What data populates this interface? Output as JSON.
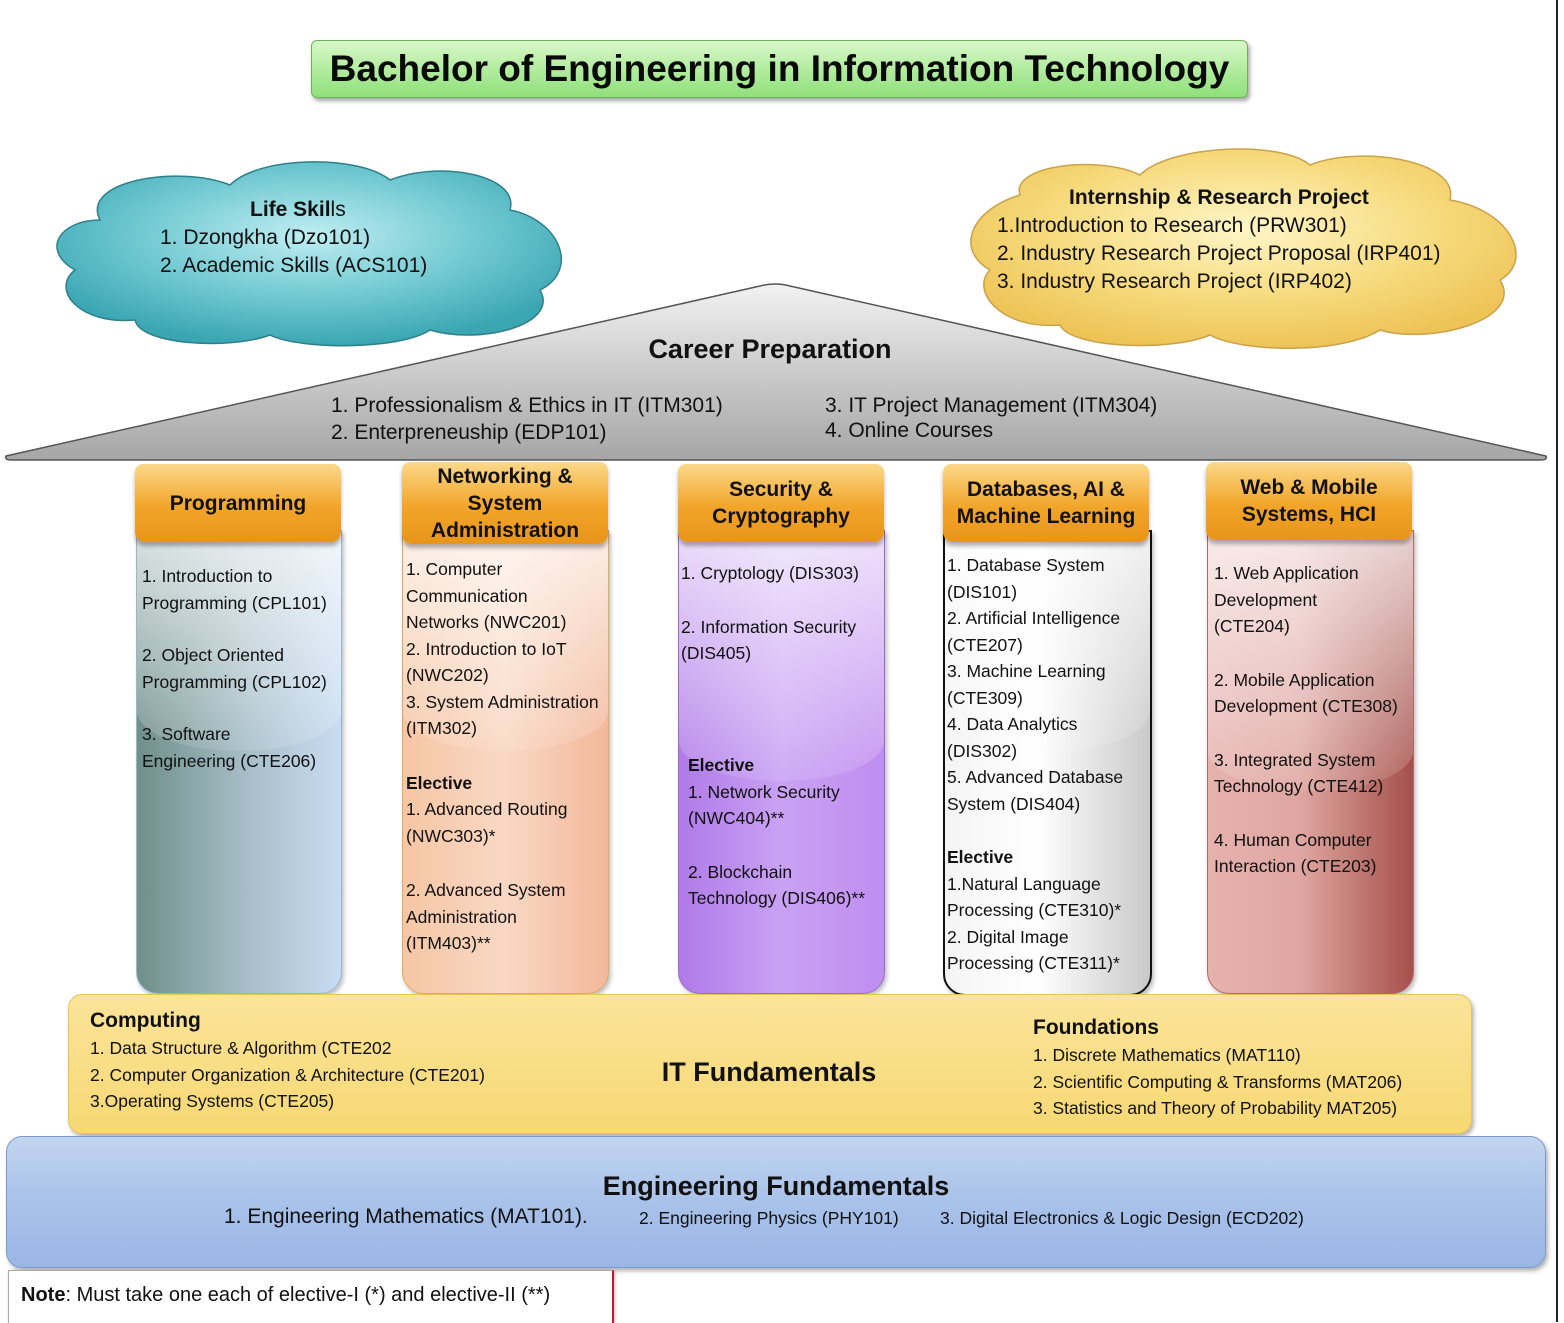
{
  "title": "Bachelor of Engineering in Information Technology",
  "life_skills": {
    "heading_bold": "Life Skil",
    "heading_rest": "ls",
    "items": [
      "1. Dzongkha (Dzo101)",
      "2. Academic Skills (ACS101)"
    ]
  },
  "internship": {
    "heading": "Internship & Research Project",
    "items": [
      "1.Introduction to Research (PRW301)",
      "2. Industry Research Project Proposal (IRP401)",
      "3. Industry Research Project (IRP402)"
    ]
  },
  "career": {
    "title": "Career Preparation",
    "items": [
      "1. Professionalism & Ethics in IT (ITM301)",
      "2. Enterpreneuship (EDP101)",
      "3. IT Project Management (ITM304)",
      "4. Online Courses"
    ]
  },
  "pillars": [
    {
      "title": "Programming",
      "items": [
        "1. Introduction to",
        "Programming (CPL101)",
        "2. Object Oriented",
        "Programming (CPL102)",
        "3. Software",
        "Engineering (CTE206)"
      ],
      "colors": {
        "top": "#eef3fa",
        "bottom_left": "#6f8f8a",
        "bottom_right": "#c9dcf2",
        "border": "#9ab4d4"
      }
    },
    {
      "title": "Networking & System Administration",
      "items": [
        "1. Computer",
        "Communication",
        "Networks (NWC201)",
        "2. Introduction to IoT",
        "(NWC202)",
        "3. System Administration",
        "(ITM302)"
      ],
      "elective_label": "Elective",
      "electives": [
        "1. Advanced Routing",
        "(NWC303)*",
        "2. Advanced System",
        "Administration",
        "(ITM403)**"
      ],
      "colors": {
        "top": "#fdf0e3",
        "bottom_left": "#f6c6a4",
        "bottom_right": "#f3b89a",
        "border": "#e2a85c"
      }
    },
    {
      "title": "Security & Cryptography",
      "items": [
        "1. Cryptology (DIS303)",
        "2. Information Security",
        "(DIS405)"
      ],
      "elective_label": "Elective",
      "electives": [
        "1. Network Security",
        "(NWC404)**",
        "2. Blockchain",
        "Technology (DIS406)**"
      ],
      "colors": {
        "top": "#eee0ff",
        "bottom_left": "#b07ae8",
        "bottom_right": "#c08df0",
        "border": "#9a6ad0"
      }
    },
    {
      "title": "Databases, AI & Machine Learning",
      "items": [
        "1. Database System",
        "(DIS101)",
        "2. Artificial Intelligence",
        "(CTE207)",
        "3. Machine Learning",
        "(CTE309)",
        "4. Data Analytics",
        "(DIS302)",
        "5. Advanced Database",
        "System (DIS404)"
      ],
      "elective_label": "Elective",
      "electives": [
        "1.Natural Language",
        "Processing (CTE310)*",
        "2. Digital Image",
        "Processing (CTE311)*"
      ],
      "colors": {
        "top": "#ffffff",
        "bottom_left": "#e8e8e8",
        "bottom_right": "#c9c9c9",
        "border": "#111111"
      }
    },
    {
      "title": "Web & Mobile Systems, HCI",
      "items": [
        "1. Web Application",
        "Development",
        "(CTE204)",
        "2. Mobile Application",
        "Development (CTE308)",
        "3. Integrated System",
        "Technology (CTE412)",
        "4. Human Computer",
        "Interaction (CTE203)"
      ],
      "colors": {
        "top": "#fbeaea",
        "bottom_left": "#e6b2ae",
        "bottom_right": "#a5504a",
        "border": "#b46a66"
      }
    }
  ],
  "it_fundamentals": {
    "title": "IT Fundamentals",
    "computing_heading": "Computing",
    "computing_items": [
      "1. Data Structure & Algorithm (CTE202",
      "2. Computer Organization & Architecture (CTE201)",
      "3.Operating Systems (CTE205)"
    ],
    "foundations_heading": "Foundations",
    "foundations_items": [
      "1. Discrete Mathematics (MAT110)",
      "2. Scientific Computing & Transforms (MAT206)",
      "3. Statistics and Theory of Probability MAT205)"
    ]
  },
  "engineering_fundamentals": {
    "title": "Engineering Fundamentals",
    "items": [
      "1. Engineering Mathematics (MAT101).",
      "2. Engineering Physics (PHY101)",
      "3. Digital Electronics & Logic Design (ECD202)"
    ]
  },
  "note": {
    "label": "Note",
    "text": ": Must take one each of elective-I (*) and elective-II (**)"
  },
  "colors": {
    "title_green": "#8fe07a",
    "life_skills_cloud": "#4fb8c4",
    "internship_cloud": "#f2d06a",
    "roof_gray": "#b0b0b0",
    "capital_orange": "#f2a52a",
    "it_fundamentals_yellow": "#f6d873",
    "engineering_blue": "#a9c2ea"
  }
}
